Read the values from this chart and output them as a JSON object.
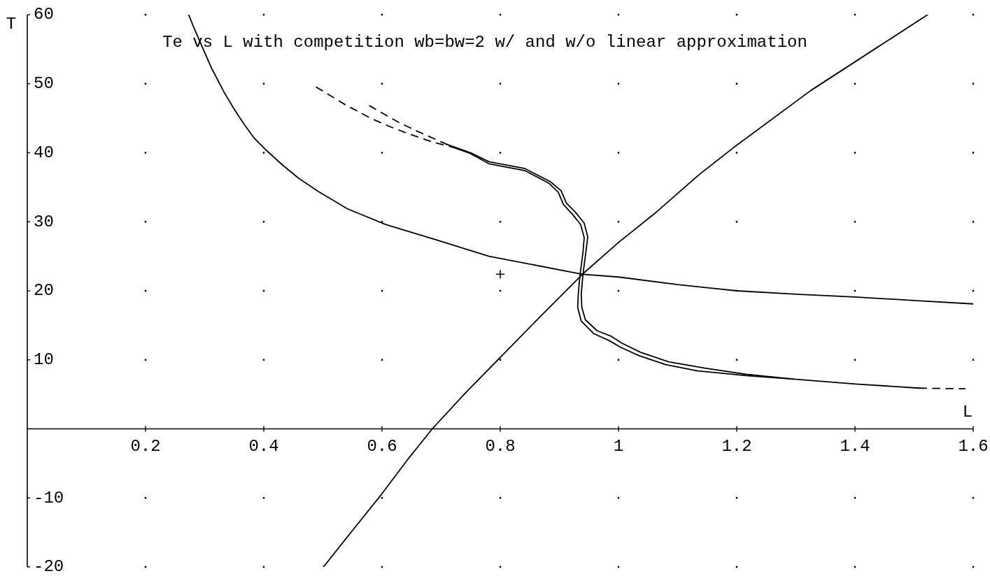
{
  "chart_data": {
    "type": "line",
    "title": "Te vs L with competition wb=bw=2 w/ and w/o linear approximation",
    "xlabel": "L",
    "ylabel": "T",
    "xlim": [
      0,
      1.6
    ],
    "ylim": [
      -20,
      60
    ],
    "xticks": [
      0.2,
      0.4,
      0.6,
      0.8,
      1,
      1.2,
      1.4,
      1.6
    ],
    "yticks": [
      -20,
      -10,
      10,
      20,
      30,
      40,
      50,
      60
    ],
    "grid": true,
    "series": [
      {
        "color": "#000000",
        "line_style": "solid",
        "x": [
          0.273,
          0.28,
          0.296,
          0.312,
          0.334,
          0.35,
          0.367,
          0.383,
          0.405,
          0.432,
          0.459,
          0.492,
          0.541,
          0.606,
          0.687,
          0.781,
          0.939,
          1.0,
          1.1,
          1.2,
          1.3,
          1.4,
          1.5,
          1.6
        ],
        "values": [
          60,
          58.5,
          55.3,
          52.2,
          48.6,
          46.3,
          44.1,
          42.2,
          40.3,
          38.2,
          36.3,
          34.4,
          31.9,
          29.6,
          27.5,
          25.0,
          22.4,
          22.0,
          20.9,
          20.0,
          19.5,
          19.1,
          18.6,
          18.1
        ]
      },
      {
        "color": "#000000",
        "line_style": "solid",
        "x": [
          0.501,
          0.553,
          0.599,
          0.642,
          0.685,
          0.74,
          0.796,
          0.868,
          0.939,
          1.0,
          1.064,
          1.136,
          1.194,
          1.325,
          1.433,
          1.523
        ],
        "values": [
          -20,
          -14.4,
          -9.5,
          -4.6,
          0,
          5.1,
          10.0,
          16.3,
          22.4,
          27.0,
          31.4,
          36.8,
          40.7,
          49.0,
          55.0,
          60
        ]
      },
      {
        "color": "#000000",
        "line_style": "solid",
        "x": [
          0.71,
          0.75,
          0.781,
          0.842,
          0.885,
          0.903,
          0.912,
          0.927,
          0.942,
          0.948,
          0.945,
          0.941,
          0.939,
          0.937,
          0.938,
          0.944,
          0.964,
          0.988,
          1.006,
          1.037,
          1.085,
          1.146,
          1.216,
          1.297,
          1.401,
          1.509
        ],
        "values": [
          41.2,
          40.0,
          38.7,
          37.7,
          35.8,
          34.5,
          32.7,
          31.4,
          29.8,
          27.8,
          25.7,
          23.1,
          21.5,
          19.5,
          17.6,
          15.8,
          14.2,
          13.4,
          12.4,
          11.1,
          9.7,
          8.8,
          7.9,
          7.2,
          6.5,
          5.9
        ]
      },
      {
        "color": "#000000",
        "line_style": "solid",
        "x": [
          0.72,
          0.749,
          0.781,
          0.842,
          0.882,
          0.898,
          0.907,
          0.922,
          0.936,
          0.942,
          0.94,
          0.936,
          0.934,
          0.932,
          0.931,
          0.937,
          0.958,
          0.984,
          1.004,
          1.035,
          1.08,
          1.134,
          1.216,
          1.297
        ],
        "values": [
          40.8,
          39.9,
          38.4,
          37.4,
          35.6,
          34.3,
          32.5,
          31.1,
          29.6,
          27.7,
          25.6,
          23.0,
          21.5,
          19.5,
          17.6,
          15.6,
          13.8,
          12.8,
          11.8,
          10.6,
          9.3,
          8.4,
          7.7,
          7.2
        ]
      },
      {
        "color": "#000000",
        "line_style": "dashed",
        "x": [
          0.579,
          0.626,
          0.66,
          0.71
        ],
        "values": [
          46.8,
          44.5,
          43.1,
          41.2
        ]
      },
      {
        "color": "#000000",
        "line_style": "dashed",
        "x": [
          0.489,
          0.539,
          0.581,
          0.61,
          0.64,
          0.687,
          0.72
        ],
        "values": [
          49.5,
          46.9,
          45.0,
          43.9,
          42.9,
          41.5,
          40.8
        ]
      },
      {
        "color": "#000000",
        "line_style": "dashed",
        "x": [
          1.509,
          1.586
        ],
        "values": [
          5.9,
          5.8
        ]
      },
      {
        "type": "scatter",
        "color": "#000000",
        "marker": "cross",
        "x": [
          0.8
        ],
        "values": [
          22.4
        ]
      }
    ]
  }
}
